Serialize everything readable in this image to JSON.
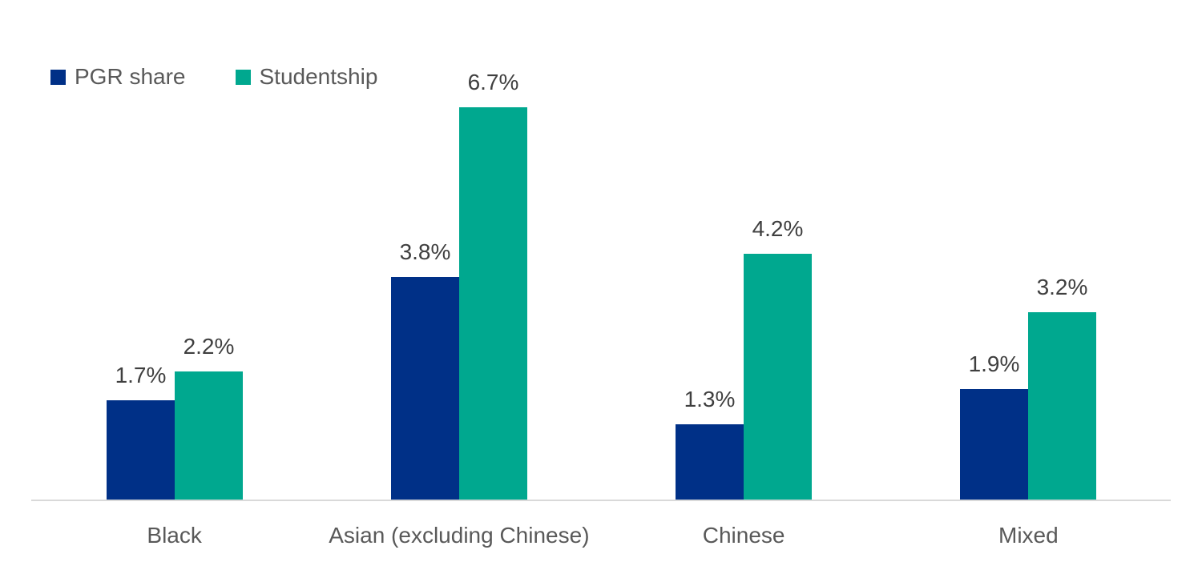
{
  "colors": {
    "pgr_share": "#003087",
    "studentship": "#00a88f",
    "axis_line": "#d9d9d9",
    "data_label_text": "#3f3f3f",
    "category_text": "#595959"
  },
  "legend": {
    "position": "top-left",
    "items": [
      {
        "label": "PGR share",
        "color": "#003087"
      },
      {
        "label": "Studentship",
        "color": "#00a88f"
      }
    ]
  },
  "chart_data": {
    "type": "bar",
    "title": "",
    "xlabel": "",
    "ylabel": "",
    "grid": false,
    "y_axis_visible": false,
    "ylim": [
      0,
      7
    ],
    "categories": [
      "Black",
      "Asian (excluding Chinese)",
      "Chinese",
      "Mixed"
    ],
    "series": [
      {
        "name": "PGR share",
        "color": "#003087",
        "values": [
          1.7,
          3.8,
          1.3,
          1.9
        ],
        "labels": [
          "1.7%",
          "3.8%",
          "1.3%",
          "1.9%"
        ]
      },
      {
        "name": "Studentship",
        "color": "#00a88f",
        "values": [
          2.2,
          6.7,
          4.2,
          3.2
        ],
        "labels": [
          "2.2%",
          "6.7%",
          "4.2%",
          "3.2%"
        ]
      }
    ]
  }
}
